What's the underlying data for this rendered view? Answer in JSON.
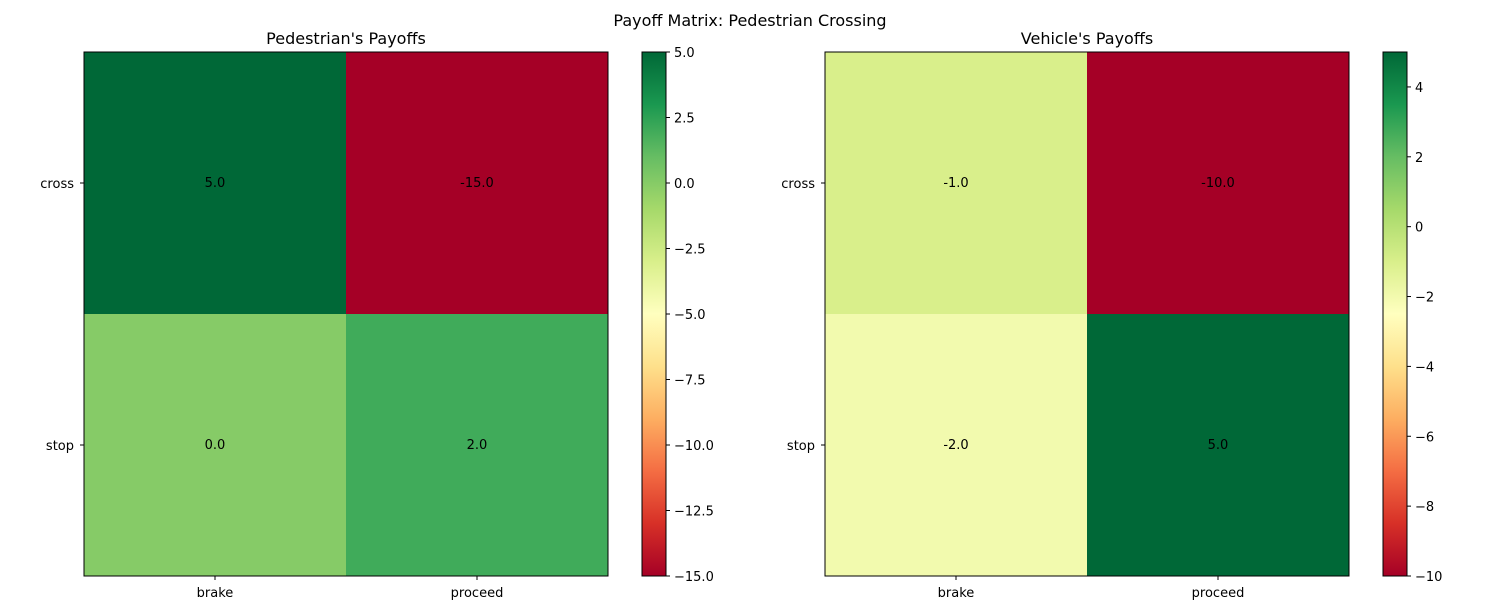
{
  "suptitle": "Payoff Matrix: Pedestrian Crossing",
  "chart_data": [
    {
      "type": "heatmap",
      "title": "Pedestrian's Payoffs",
      "x_categories": [
        "brake",
        "proceed"
      ],
      "y_categories": [
        "cross",
        "stop"
      ],
      "values": [
        [
          5.0,
          -15.0
        ],
        [
          0.0,
          2.0
        ]
      ],
      "value_labels": [
        [
          "5.0",
          "-15.0"
        ],
        [
          "0.0",
          "2.0"
        ]
      ],
      "colormap": "RdYlGn",
      "colorbar": {
        "range": [
          -15.0,
          5.0
        ],
        "ticks": [
          5.0,
          2.5,
          0.0,
          -2.5,
          -5.0,
          -7.5,
          -10.0,
          -12.5,
          -15.0
        ],
        "tick_labels": [
          "5.0",
          "2.5",
          "0.0",
          "−2.5",
          "−5.0",
          "−7.5",
          "−10.0",
          "−12.5",
          "−15.0"
        ]
      }
    },
    {
      "type": "heatmap",
      "title": "Vehicle's Payoffs",
      "x_categories": [
        "brake",
        "proceed"
      ],
      "y_categories": [
        "cross",
        "stop"
      ],
      "values": [
        [
          -1.0,
          -10.0
        ],
        [
          -2.0,
          5.0
        ]
      ],
      "value_labels": [
        [
          "-1.0",
          "-10.0"
        ],
        [
          "-2.0",
          "5.0"
        ]
      ],
      "colormap": "RdYlGn",
      "colorbar": {
        "range": [
          -10.0,
          5.0
        ],
        "ticks": [
          4,
          2,
          0,
          -2,
          -4,
          -6,
          -8,
          -10
        ],
        "tick_labels": [
          "4",
          "2",
          "0",
          "−2",
          "−4",
          "−6",
          "−8",
          "−10"
        ]
      }
    }
  ]
}
